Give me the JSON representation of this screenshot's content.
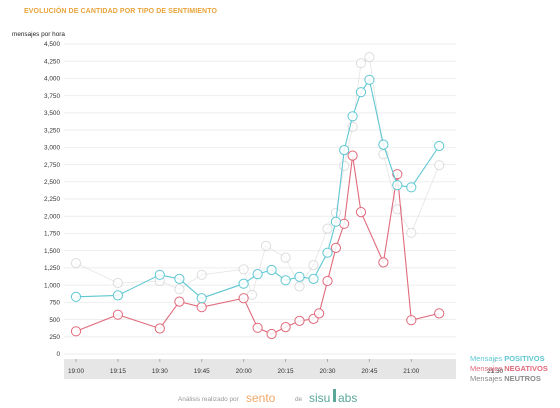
{
  "chart_data": {
    "type": "line",
    "title": "EVOLUCIÓN DE CANTIDAD POR TIPO DE SENTIMIENTO",
    "ylabel": "mensajes por hora",
    "ylim": [
      0,
      4500
    ],
    "yticks": [
      0,
      250,
      500,
      750,
      "1,000",
      "1,250",
      "1,500",
      "1,750",
      "2,000",
      "2,250",
      "2,500",
      "2,750",
      "3,000",
      "3,250",
      "3,500",
      "3,750",
      "4,000",
      "4,250",
      "4,500"
    ],
    "xticks": [
      "19:00",
      "19:15",
      "19:30",
      "19:45",
      "20:00",
      "20:15",
      "20:30",
      "20:45",
      "21:00",
      "21:30"
    ],
    "grid": true,
    "legend_position": "bottom-right",
    "series": [
      {
        "name": "Mensajes",
        "name_strong": "POSITIVOS",
        "color": "#5fc7d2",
        "points": [
          {
            "x": "19:00",
            "y": 830
          },
          {
            "x": "19:15",
            "y": 850
          },
          {
            "x": "19:30",
            "y": 1150
          },
          {
            "x": "19:37",
            "y": 1090
          },
          {
            "x": "19:45",
            "y": 810
          },
          {
            "x": "20:00",
            "y": 1020
          },
          {
            "x": "20:05",
            "y": 1160
          },
          {
            "x": "20:10",
            "y": 1220
          },
          {
            "x": "20:15",
            "y": 1070
          },
          {
            "x": "20:20",
            "y": 1120
          },
          {
            "x": "20:25",
            "y": 1090
          },
          {
            "x": "20:30",
            "y": 1470
          },
          {
            "x": "20:33",
            "y": 1920
          },
          {
            "x": "20:36",
            "y": 2960
          },
          {
            "x": "20:39",
            "y": 3450
          },
          {
            "x": "20:42",
            "y": 3800
          },
          {
            "x": "20:45",
            "y": 3980
          },
          {
            "x": "20:50",
            "y": 3040
          },
          {
            "x": "20:55",
            "y": 2450
          },
          {
            "x": "21:00",
            "y": 2420
          },
          {
            "x": "21:10",
            "y": 3020
          }
        ]
      },
      {
        "name": "Mensajes",
        "name_strong": "NEGATIVOS",
        "color": "#e06a7c",
        "points": [
          {
            "x": "19:00",
            "y": 330
          },
          {
            "x": "19:15",
            "y": 570
          },
          {
            "x": "19:30",
            "y": 370
          },
          {
            "x": "19:37",
            "y": 760
          },
          {
            "x": "19:45",
            "y": 680
          },
          {
            "x": "20:00",
            "y": 810
          },
          {
            "x": "20:05",
            "y": 380
          },
          {
            "x": "20:10",
            "y": 290
          },
          {
            "x": "20:15",
            "y": 390
          },
          {
            "x": "20:20",
            "y": 480
          },
          {
            "x": "20:25",
            "y": 510
          },
          {
            "x": "20:27",
            "y": 590
          },
          {
            "x": "20:30",
            "y": 1060
          },
          {
            "x": "20:33",
            "y": 1540
          },
          {
            "x": "20:36",
            "y": 1890
          },
          {
            "x": "20:39",
            "y": 2880
          },
          {
            "x": "20:42",
            "y": 2060
          },
          {
            "x": "20:50",
            "y": 1330
          },
          {
            "x": "20:55",
            "y": 2610
          },
          {
            "x": "21:00",
            "y": 490
          },
          {
            "x": "21:10",
            "y": 590
          }
        ]
      },
      {
        "name": "Mensajes",
        "name_strong": "NEUTROS",
        "color": "#cfcfcf",
        "points": [
          {
            "x": "19:00",
            "y": 1320
          },
          {
            "x": "19:15",
            "y": 1030
          },
          {
            "x": "19:30",
            "y": 1060
          },
          {
            "x": "19:37",
            "y": 940
          },
          {
            "x": "19:45",
            "y": 1150
          },
          {
            "x": "20:00",
            "y": 1230
          },
          {
            "x": "20:03",
            "y": 860
          },
          {
            "x": "20:08",
            "y": 1570
          },
          {
            "x": "20:15",
            "y": 1400
          },
          {
            "x": "20:20",
            "y": 980
          },
          {
            "x": "20:25",
            "y": 1290
          },
          {
            "x": "20:30",
            "y": 1820
          },
          {
            "x": "20:33",
            "y": 2050
          },
          {
            "x": "20:36",
            "y": 2730
          },
          {
            "x": "20:39",
            "y": 3300
          },
          {
            "x": "20:42",
            "y": 4220
          },
          {
            "x": "20:45",
            "y": 4310
          },
          {
            "x": "20:50",
            "y": 2900
          },
          {
            "x": "20:55",
            "y": 2100
          },
          {
            "x": "21:00",
            "y": 1760
          },
          {
            "x": "21:10",
            "y": 2740
          }
        ]
      }
    ]
  },
  "footer": {
    "text": "Análisis realizado por",
    "brand1": "sento",
    "connector": "de",
    "brand2": "sisu",
    "brand2_suffix": "abs"
  }
}
